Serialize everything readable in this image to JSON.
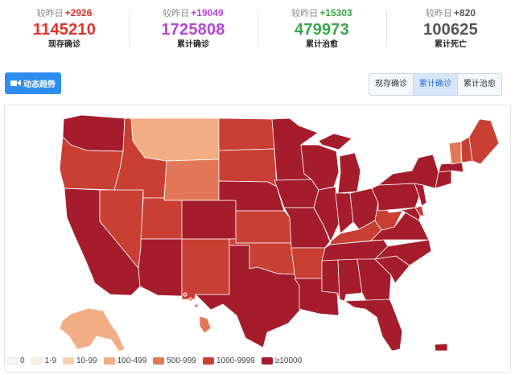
{
  "stats": [
    {
      "delta_label": "较昨日",
      "delta": "+2926",
      "total": "1145210",
      "label": "现存确诊",
      "color": "#e1312a"
    },
    {
      "delta_label": "较昨日",
      "delta": "+19049",
      "total": "1725808",
      "label": "累计确诊",
      "color": "#b545d8"
    },
    {
      "delta_label": "较昨日",
      "delta": "+15303",
      "total": "479973",
      "label": "累计治愈",
      "color": "#3aa54a"
    },
    {
      "delta_label": "较昨日",
      "delta": "+820",
      "total": "100625",
      "label": "累计死亡",
      "color": "#555555"
    }
  ],
  "trend_button": {
    "label": "动态趋势",
    "icon": "video-camera-icon"
  },
  "tabs": [
    {
      "label": "现存确诊",
      "active": false
    },
    {
      "label": "累计确诊",
      "active": true
    },
    {
      "label": "累计治愈",
      "active": false
    }
  ],
  "legend": [
    {
      "label": "0",
      "color": "#f5f5f5"
    },
    {
      "label": "1-9",
      "color": "#fdf0d8"
    },
    {
      "label": "10-99",
      "color": "#f6d2b1"
    },
    {
      "label": "100-499",
      "color": "#f2ad85"
    },
    {
      "label": "500-999",
      "color": "#e37859"
    },
    {
      "label": "1000-9999",
      "color": "#c93f34"
    },
    {
      "label": "≥10000",
      "color": "#a51d2d"
    }
  ],
  "map": {
    "colors": {
      "c1": "#f2ad85",
      "c2": "#e37859",
      "c3": "#c93f34",
      "c4": "#a51d2d",
      "border": "#ffffff"
    }
  }
}
